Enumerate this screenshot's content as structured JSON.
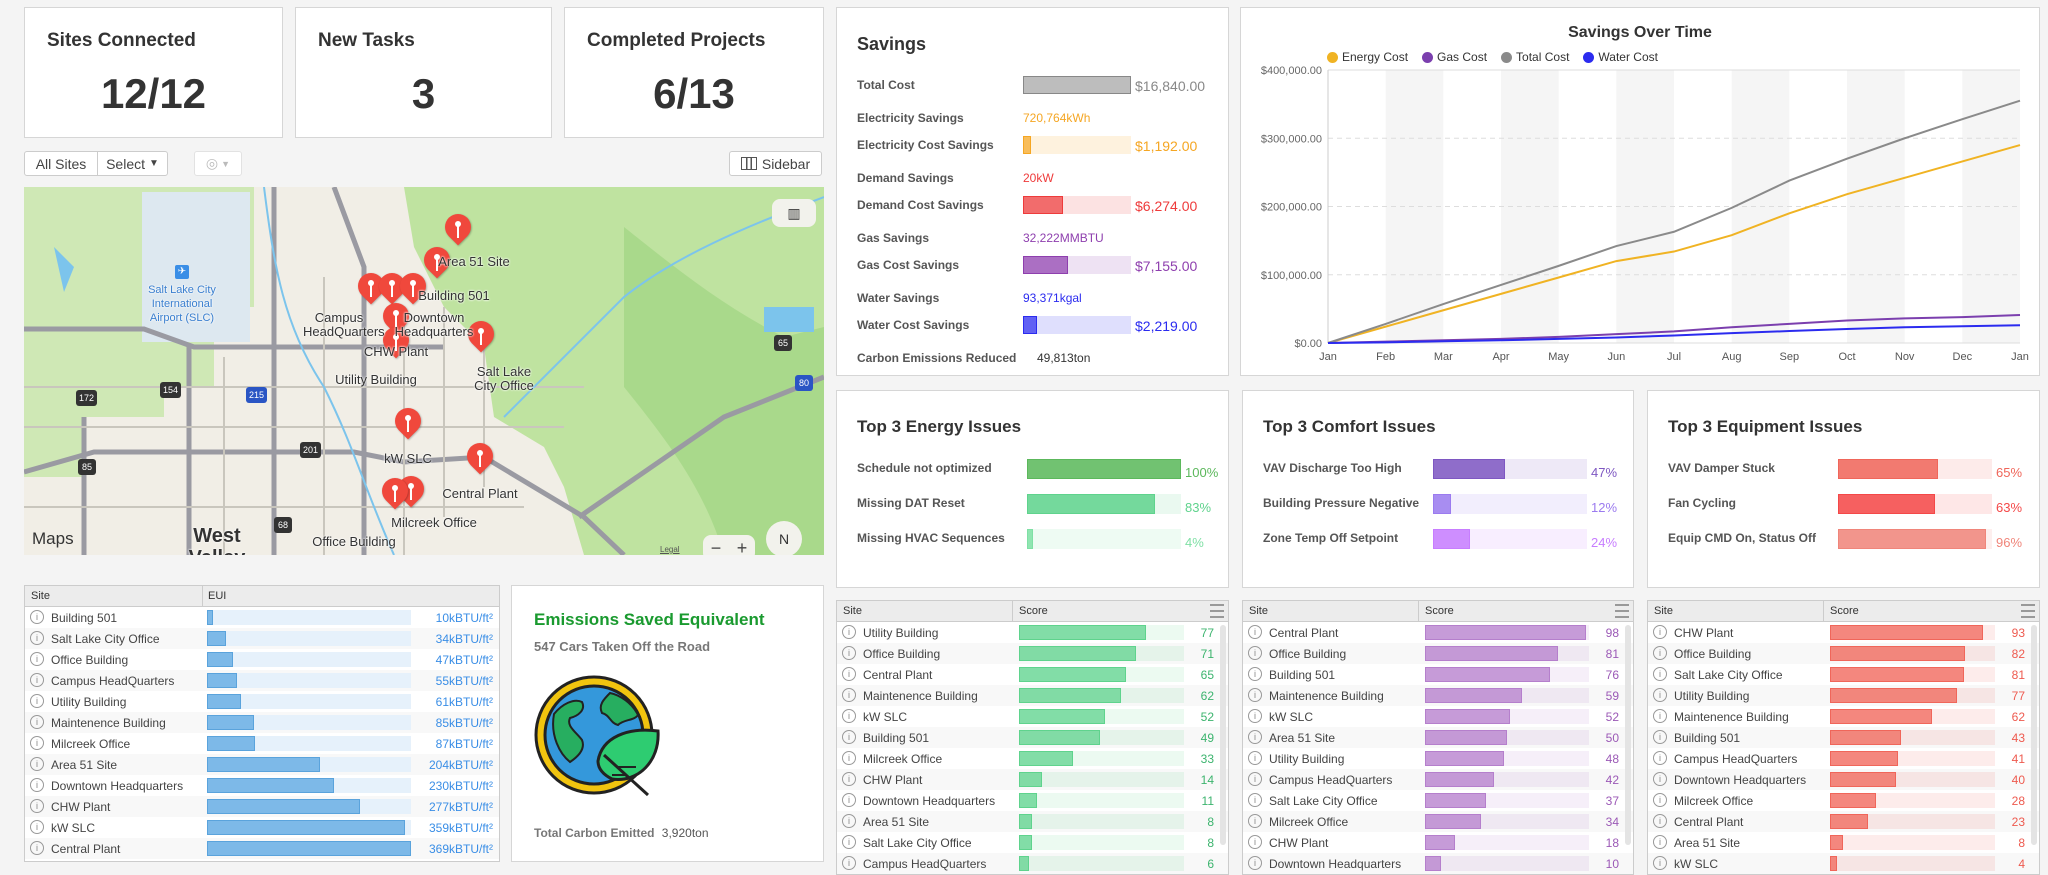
{
  "kpis": [
    {
      "title": "Sites Connected",
      "value": "12/12"
    },
    {
      "title": "New Tasks",
      "value": "3"
    },
    {
      "title": "Completed Projects",
      "value": "6/13"
    }
  ],
  "toolbar": {
    "all_sites": "All Sites",
    "select": "Select",
    "sidebar": "Sidebar"
  },
  "map": {
    "attribution": "Maps",
    "legal": "Legal",
    "compass": "N",
    "zoom_out": "−",
    "zoom_in": "+",
    "places": [
      "Salt Lake City International Airport (SLC)",
      "West Valley"
    ],
    "highways": [
      "172",
      "154",
      "215",
      "201",
      "85",
      "68",
      "65",
      "80"
    ],
    "pins": [
      "Area 51 Site",
      "Building 501",
      "Campus HeadQuarters",
      "Downtown Headquarters",
      "Office Building",
      "CHW Plant",
      "Utility Building",
      "Salt Lake City Office",
      "kW SLC",
      "Central Plant",
      "Milcreek Office",
      "Maintenence Building"
    ]
  },
  "eui_table": {
    "headers": [
      "Site",
      "EUI"
    ],
    "max": 369,
    "color": "#7db9e8",
    "rows": [
      {
        "site": "Building 501",
        "value": 10,
        "label": "10kBTU/ft²"
      },
      {
        "site": "Salt Lake City Office",
        "value": 34,
        "label": "34kBTU/ft²"
      },
      {
        "site": "Office Building",
        "value": 47,
        "label": "47kBTU/ft²"
      },
      {
        "site": "Campus HeadQuarters",
        "value": 55,
        "label": "55kBTU/ft²"
      },
      {
        "site": "Utility Building",
        "value": 61,
        "label": "61kBTU/ft²"
      },
      {
        "site": "Maintenence Building",
        "value": 85,
        "label": "85kBTU/ft²"
      },
      {
        "site": "Milcreek Office",
        "value": 87,
        "label": "87kBTU/ft²"
      },
      {
        "site": "Area 51 Site",
        "value": 204,
        "label": "204kBTU/ft²"
      },
      {
        "site": "Downtown Headquarters",
        "value": 230,
        "label": "230kBTU/ft²"
      },
      {
        "site": "CHW Plant",
        "value": 277,
        "label": "277kBTU/ft²"
      },
      {
        "site": "kW SLC",
        "value": 359,
        "label": "359kBTU/ft²"
      },
      {
        "site": "Central Plant",
        "value": 369,
        "label": "369kBTU/ft²"
      }
    ]
  },
  "emissions": {
    "title": "Emissions Saved Equivalent",
    "subtitle": "547 Cars Taken Off the Road",
    "footer_label": "Total Carbon Emitted",
    "footer_value": "3,920ton",
    "icon": "earth-leaf-icon"
  },
  "savings": {
    "title": "Savings",
    "rows": [
      {
        "label": "Total Cost",
        "amount": "$16,840.00",
        "fraction": 1,
        "color": "#aaaaaa"
      },
      {
        "label": "Electricity Savings",
        "value": "720,764kWh",
        "color": "#f5a623"
      },
      {
        "label": "Electricity Cost Savings",
        "amount": "$1,192.00",
        "fraction": 0.07,
        "color": "#f5a623"
      },
      {
        "label": "Demand Savings",
        "value": "20kW",
        "color": "#ee3b3b"
      },
      {
        "label": "Demand Cost Savings",
        "amount": "$6,274.00",
        "fraction": 0.37,
        "color": "#ee3b3b"
      },
      {
        "label": "Gas Savings",
        "value": "32,222MMBTU",
        "color": "#8e3fae"
      },
      {
        "label": "Gas Cost Savings",
        "amount": "$7,155.00",
        "fraction": 0.42,
        "color": "#8e3fae"
      },
      {
        "label": "Water Savings",
        "value": "93,371kgal",
        "color": "#2b2bef"
      },
      {
        "label": "Water Cost Savings",
        "amount": "$2,219.00",
        "fraction": 0.13,
        "color": "#2b2bef"
      },
      {
        "label": "Carbon Emissions Reduced",
        "value": "49,813ton",
        "color": "#333333"
      }
    ]
  },
  "chart_data": {
    "type": "line",
    "title": "Savings Over Time",
    "legend_position": "top-left",
    "x": [
      "Jan",
      "Feb",
      "Mar",
      "Apr",
      "May",
      "Jun",
      "Jul",
      "Aug",
      "Sep",
      "Oct",
      "Nov",
      "Dec",
      "Jan"
    ],
    "yticks": [
      "$0.00",
      "$100,000.00",
      "$200,000.00",
      "$300,000.00",
      "$400,000.00"
    ],
    "ylim": [
      0,
      400000
    ],
    "grid": "horizontal dashed, alternating month bands",
    "series": [
      {
        "name": "Energy Cost",
        "color": "#f0b323",
        "values": [
          0,
          24000,
          48000,
          72000,
          96000,
          120000,
          134000,
          158000,
          190000,
          218000,
          242000,
          266000,
          290000
        ]
      },
      {
        "name": "Gas Cost",
        "color": "#7b3fae",
        "values": [
          0,
          2000,
          4000,
          6000,
          9000,
          13000,
          17000,
          23000,
          28000,
          33000,
          36000,
          38000,
          41000
        ]
      },
      {
        "name": "Total Cost",
        "color": "#8a8a8a",
        "values": [
          0,
          28000,
          57000,
          85000,
          113000,
          142000,
          163000,
          198000,
          238000,
          270000,
          300000,
          328000,
          355000
        ]
      },
      {
        "name": "Water Cost",
        "color": "#2b2bef",
        "values": [
          0,
          1000,
          2500,
          4000,
          6000,
          8000,
          11000,
          14500,
          17500,
          20500,
          23000,
          24500,
          26000
        ]
      }
    ]
  },
  "issues": [
    {
      "title": "Top 3 Energy Issues",
      "color": "#3cb44b",
      "items": [
        {
          "label": "Schedule not optimized",
          "value": 100,
          "text": "100%",
          "color": "#5cb85c"
        },
        {
          "label": "Missing DAT Reset",
          "value": 83,
          "text": "83%",
          "color": "#5fd38d"
        },
        {
          "label": "Missing HVAC Sequences",
          "value": 4,
          "text": "4%",
          "color": "#7fe0a5"
        }
      ]
    },
    {
      "title": "Top 3 Comfort Issues",
      "color": "#8e44ad",
      "items": [
        {
          "label": "VAV Discharge Too High",
          "value": 47,
          "text": "47%",
          "color": "#7e57c2"
        },
        {
          "label": "Building Pressure Negative",
          "value": 12,
          "text": "12%",
          "color": "#9b7bef"
        },
        {
          "label": "Zone Temp Off Setpoint",
          "value": 24,
          "text": "24%",
          "color": "#c77dff"
        }
      ]
    },
    {
      "title": "Top 3 Equipment Issues",
      "color": "#ee5a4f",
      "items": [
        {
          "label": "VAV Damper Stuck",
          "value": 65,
          "text": "65%",
          "color": "#f0665a"
        },
        {
          "label": "Fan Cycling",
          "value": 63,
          "text": "63%",
          "color": "#f44848"
        },
        {
          "label": "Equip CMD On, Status Off",
          "value": 96,
          "text": "96%",
          "color": "#f0857a"
        }
      ]
    }
  ],
  "score_tables": [
    {
      "headers": [
        "Site",
        "Score"
      ],
      "color": "#5fd38d",
      "text_color": "#3cb46e",
      "rows": [
        [
          "Utility Building",
          77
        ],
        [
          "Office Building",
          71
        ],
        [
          "Central Plant",
          65
        ],
        [
          "Maintenence Building",
          62
        ],
        [
          "kW SLC",
          52
        ],
        [
          "Building 501",
          49
        ],
        [
          "Milcreek Office",
          33
        ],
        [
          "CHW Plant",
          14
        ],
        [
          "Downtown Headquarters",
          11
        ],
        [
          "Area 51 Site",
          8
        ],
        [
          "Salt Lake City Office",
          8
        ],
        [
          "Campus HeadQuarters",
          6
        ]
      ]
    },
    {
      "headers": [
        "Site",
        "Score"
      ],
      "color": "#b57fcc",
      "text_color": "#9b59b6",
      "rows": [
        [
          "Central Plant",
          98
        ],
        [
          "Office Building",
          81
        ],
        [
          "Building 501",
          76
        ],
        [
          "Maintenence Building",
          59
        ],
        [
          "kW SLC",
          52
        ],
        [
          "Area 51 Site",
          50
        ],
        [
          "Utility Building",
          48
        ],
        [
          "Campus HeadQuarters",
          42
        ],
        [
          "Salt Lake City Office",
          37
        ],
        [
          "Milcreek Office",
          34
        ],
        [
          "CHW Plant",
          18
        ],
        [
          "Downtown Headquarters",
          10
        ]
      ]
    },
    {
      "headers": [
        "Site",
        "Score"
      ],
      "color": "#f0665a",
      "text_color": "#ee5a4f",
      "rows": [
        [
          "CHW Plant",
          93
        ],
        [
          "Office Building",
          82
        ],
        [
          "Salt Lake City Office",
          81
        ],
        [
          "Utility Building",
          77
        ],
        [
          "Maintenence Building",
          62
        ],
        [
          "Building 501",
          43
        ],
        [
          "Campus HeadQuarters",
          41
        ],
        [
          "Downtown Headquarters",
          40
        ],
        [
          "Milcreek Office",
          28
        ],
        [
          "Central Plant",
          23
        ],
        [
          "Area 51 Site",
          8
        ],
        [
          "kW SLC",
          4
        ]
      ]
    }
  ]
}
